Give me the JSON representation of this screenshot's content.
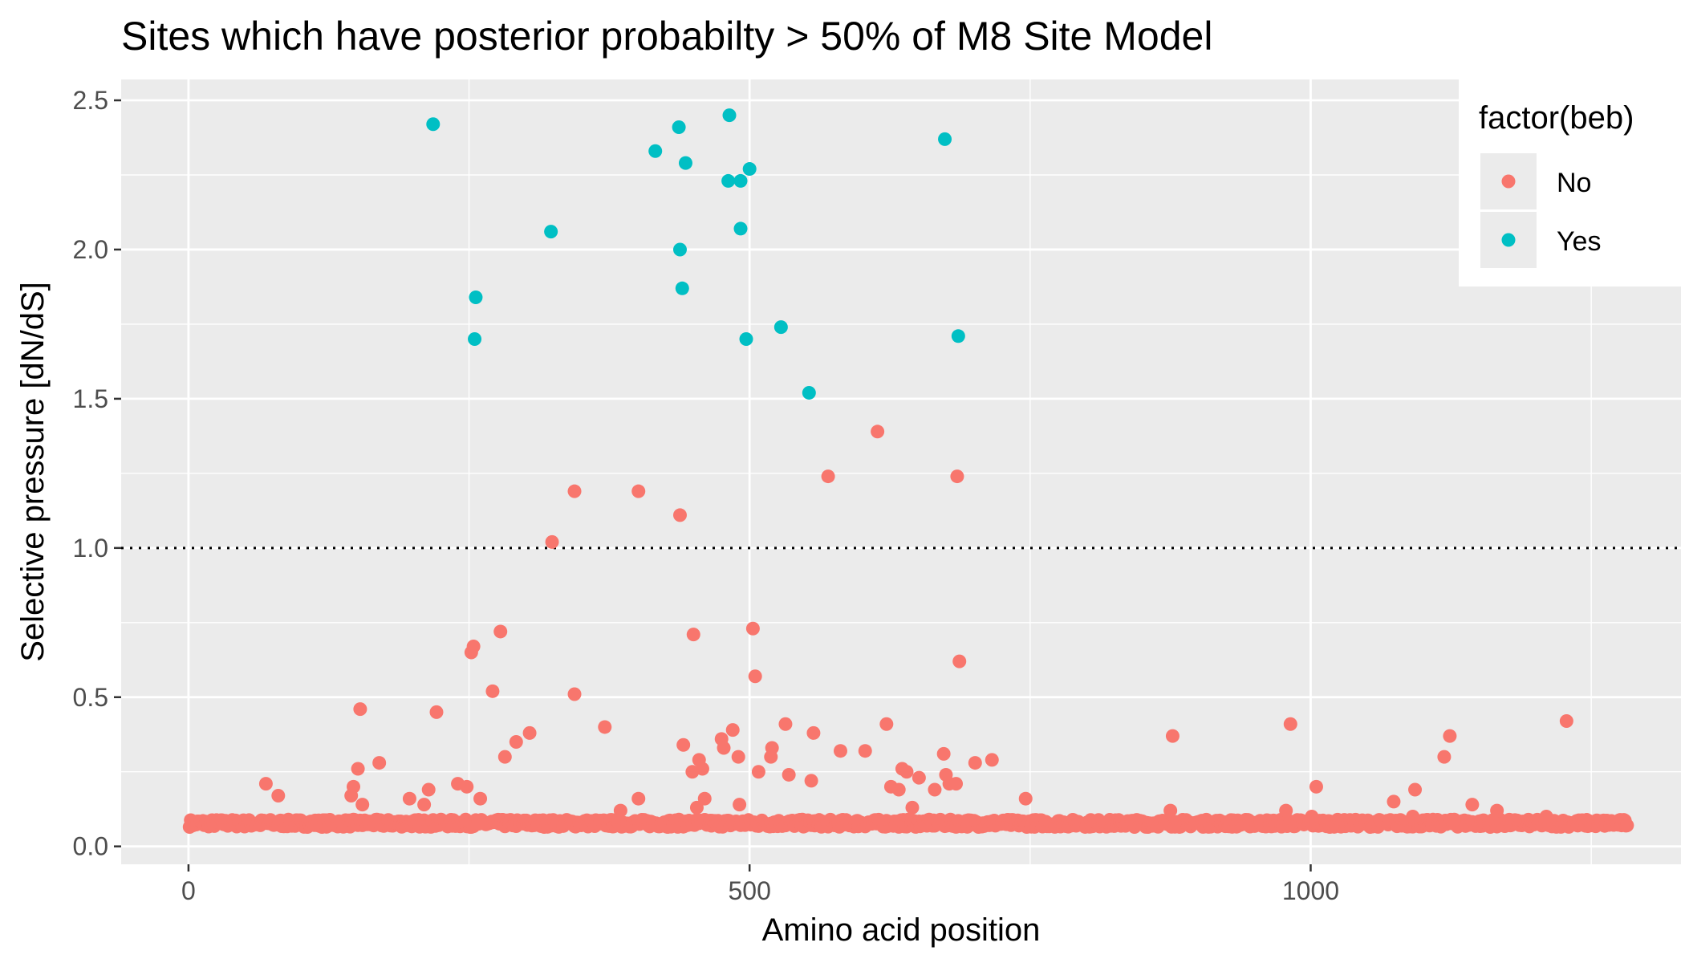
{
  "chart_data": {
    "type": "scatter",
    "title": "Sites which have posterior probabilty > 50% of M8 Site Model",
    "xlabel": "Amino acid position",
    "ylabel": "Selective pressure [dN/dS]",
    "xlim": [
      -60,
      1330
    ],
    "ylim": [
      -0.06,
      2.57
    ],
    "x_ticks": [
      0,
      500,
      1000
    ],
    "x_tick_labels": [
      "0",
      "500",
      "1000"
    ],
    "y_ticks": [
      0.0,
      0.5,
      1.0,
      1.5,
      2.0,
      2.5
    ],
    "y_tick_labels": [
      "0.0",
      "0.5",
      "1.0",
      "1.5",
      "2.0",
      "2.5"
    ],
    "grid": true,
    "reference_line": {
      "y": 1.0,
      "style": "dotted"
    },
    "legend": {
      "title": "factor(beb)",
      "position": "top-right"
    },
    "colors": {
      "No": "#F8766D",
      "Yes": "#00BFC4",
      "panel": "#EBEBEB",
      "grid": "#FFFFFF"
    },
    "baseline": {
      "x_start": 1,
      "x_end": 1282,
      "y_min": 0.065,
      "y_max": 0.09
    },
    "series": [
      {
        "name": "Yes",
        "color": "#00BFC4",
        "points": [
          {
            "x": 218,
            "y": 2.42
          },
          {
            "x": 256,
            "y": 1.84
          },
          {
            "x": 255,
            "y": 1.7
          },
          {
            "x": 323,
            "y": 2.06
          },
          {
            "x": 416,
            "y": 2.33
          },
          {
            "x": 437,
            "y": 2.41
          },
          {
            "x": 438,
            "y": 2.0
          },
          {
            "x": 440,
            "y": 1.87
          },
          {
            "x": 443,
            "y": 2.29
          },
          {
            "x": 482,
            "y": 2.45
          },
          {
            "x": 481,
            "y": 2.23
          },
          {
            "x": 492,
            "y": 2.23
          },
          {
            "x": 492,
            "y": 2.07
          },
          {
            "x": 497,
            "y": 1.7
          },
          {
            "x": 500,
            "y": 2.27
          },
          {
            "x": 528,
            "y": 1.74
          },
          {
            "x": 553,
            "y": 1.52
          },
          {
            "x": 674,
            "y": 2.37
          },
          {
            "x": 686,
            "y": 1.71
          }
        ]
      },
      {
        "name": "No",
        "color": "#F8766D",
        "points": [
          {
            "x": 69,
            "y": 0.21
          },
          {
            "x": 80,
            "y": 0.17
          },
          {
            "x": 145,
            "y": 0.17
          },
          {
            "x": 147,
            "y": 0.2
          },
          {
            "x": 151,
            "y": 0.26
          },
          {
            "x": 153,
            "y": 0.46
          },
          {
            "x": 155,
            "y": 0.14
          },
          {
            "x": 170,
            "y": 0.28
          },
          {
            "x": 197,
            "y": 0.16
          },
          {
            "x": 210,
            "y": 0.14
          },
          {
            "x": 214,
            "y": 0.19
          },
          {
            "x": 221,
            "y": 0.45
          },
          {
            "x": 240,
            "y": 0.21
          },
          {
            "x": 248,
            "y": 0.2
          },
          {
            "x": 252,
            "y": 0.65
          },
          {
            "x": 254,
            "y": 0.67
          },
          {
            "x": 258,
            "y": 0.08
          },
          {
            "x": 260,
            "y": 0.16
          },
          {
            "x": 271,
            "y": 0.52
          },
          {
            "x": 278,
            "y": 0.72
          },
          {
            "x": 282,
            "y": 0.3
          },
          {
            "x": 292,
            "y": 0.35
          },
          {
            "x": 304,
            "y": 0.38
          },
          {
            "x": 324,
            "y": 1.02
          },
          {
            "x": 344,
            "y": 1.19
          },
          {
            "x": 344,
            "y": 0.51
          },
          {
            "x": 371,
            "y": 0.4
          },
          {
            "x": 385,
            "y": 0.12
          },
          {
            "x": 401,
            "y": 1.19
          },
          {
            "x": 401,
            "y": 0.16
          },
          {
            "x": 438,
            "y": 1.11
          },
          {
            "x": 441,
            "y": 0.34
          },
          {
            "x": 449,
            "y": 0.25
          },
          {
            "x": 450,
            "y": 0.71
          },
          {
            "x": 453,
            "y": 0.13
          },
          {
            "x": 455,
            "y": 0.29
          },
          {
            "x": 458,
            "y": 0.26
          },
          {
            "x": 460,
            "y": 0.16
          },
          {
            "x": 475,
            "y": 0.36
          },
          {
            "x": 477,
            "y": 0.33
          },
          {
            "x": 485,
            "y": 0.39
          },
          {
            "x": 490,
            "y": 0.3
          },
          {
            "x": 491,
            "y": 0.14
          },
          {
            "x": 503,
            "y": 0.73
          },
          {
            "x": 505,
            "y": 0.57
          },
          {
            "x": 508,
            "y": 0.25
          },
          {
            "x": 519,
            "y": 0.3
          },
          {
            "x": 520,
            "y": 0.33
          },
          {
            "x": 532,
            "y": 0.41
          },
          {
            "x": 535,
            "y": 0.24
          },
          {
            "x": 555,
            "y": 0.22
          },
          {
            "x": 557,
            "y": 0.38
          },
          {
            "x": 570,
            "y": 1.24
          },
          {
            "x": 581,
            "y": 0.32
          },
          {
            "x": 603,
            "y": 0.32
          },
          {
            "x": 614,
            "y": 1.39
          },
          {
            "x": 622,
            "y": 0.41
          },
          {
            "x": 626,
            "y": 0.2
          },
          {
            "x": 633,
            "y": 0.19
          },
          {
            "x": 636,
            "y": 0.26
          },
          {
            "x": 640,
            "y": 0.25
          },
          {
            "x": 645,
            "y": 0.13
          },
          {
            "x": 651,
            "y": 0.23
          },
          {
            "x": 665,
            "y": 0.19
          },
          {
            "x": 673,
            "y": 0.31
          },
          {
            "x": 675,
            "y": 0.24
          },
          {
            "x": 678,
            "y": 0.21
          },
          {
            "x": 684,
            "y": 0.21
          },
          {
            "x": 685,
            "y": 1.24
          },
          {
            "x": 687,
            "y": 0.62
          },
          {
            "x": 701,
            "y": 0.28
          },
          {
            "x": 716,
            "y": 0.29
          },
          {
            "x": 746,
            "y": 0.16
          },
          {
            "x": 877,
            "y": 0.37
          },
          {
            "x": 875,
            "y": 0.12
          },
          {
            "x": 978,
            "y": 0.12
          },
          {
            "x": 982,
            "y": 0.41
          },
          {
            "x": 1005,
            "y": 0.2
          },
          {
            "x": 1001,
            "y": 0.1
          },
          {
            "x": 1074,
            "y": 0.15
          },
          {
            "x": 1093,
            "y": 0.19
          },
          {
            "x": 1091,
            "y": 0.1
          },
          {
            "x": 1119,
            "y": 0.3
          },
          {
            "x": 1124,
            "y": 0.37
          },
          {
            "x": 1128,
            "y": 0.09
          },
          {
            "x": 1144,
            "y": 0.14
          },
          {
            "x": 1166,
            "y": 0.12
          },
          {
            "x": 1228,
            "y": 0.42
          },
          {
            "x": 1210,
            "y": 0.1
          }
        ]
      }
    ]
  }
}
